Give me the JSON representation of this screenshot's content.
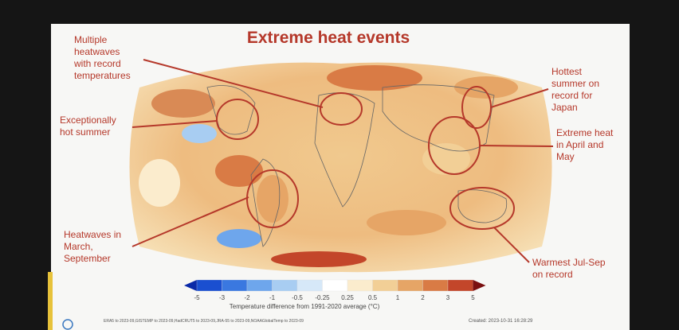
{
  "title": "Extreme heat events",
  "annotations": [
    {
      "lines": [
        "Multiple",
        "heatwaves",
        "with record",
        "temperatures"
      ]
    },
    {
      "lines": [
        "Exceptionally",
        "hot summer"
      ]
    },
    {
      "lines": [
        "Heatwaves in",
        "March,",
        "September"
      ]
    },
    {
      "lines": [
        "Hottest",
        "summer on",
        "record for",
        "Japan"
      ]
    },
    {
      "lines": [
        "Extreme heat",
        "in April and",
        "May"
      ]
    },
    {
      "lines": [
        "Warmest Jul-Sep",
        "on record"
      ]
    }
  ],
  "colorbar": {
    "ticks": [
      -5,
      -3,
      -2,
      -1,
      -0.5,
      -0.25,
      0.25,
      0.5,
      1,
      2,
      3,
      5
    ],
    "colors": [
      "#0a2aa8",
      "#1a4fd0",
      "#3a78e0",
      "#6ea6ec",
      "#a8cdf2",
      "#d6e8f8",
      "#ffffff",
      "#fbeccd",
      "#f2cf96",
      "#e6a566",
      "#d97b45",
      "#c3462a",
      "#7a1010"
    ],
    "label": "Temperature difference from 1991-2020 average (°C)"
  },
  "footer": {
    "sources": "ERA5 to 2023-09,GISTEMP to 2023-09,HadCRUT5 to 2023-09,JRA-55 to 2023-09,NOAAGlobalTemp to 2023-09",
    "created": "Created: 2023-10-31 16:28:29"
  }
}
